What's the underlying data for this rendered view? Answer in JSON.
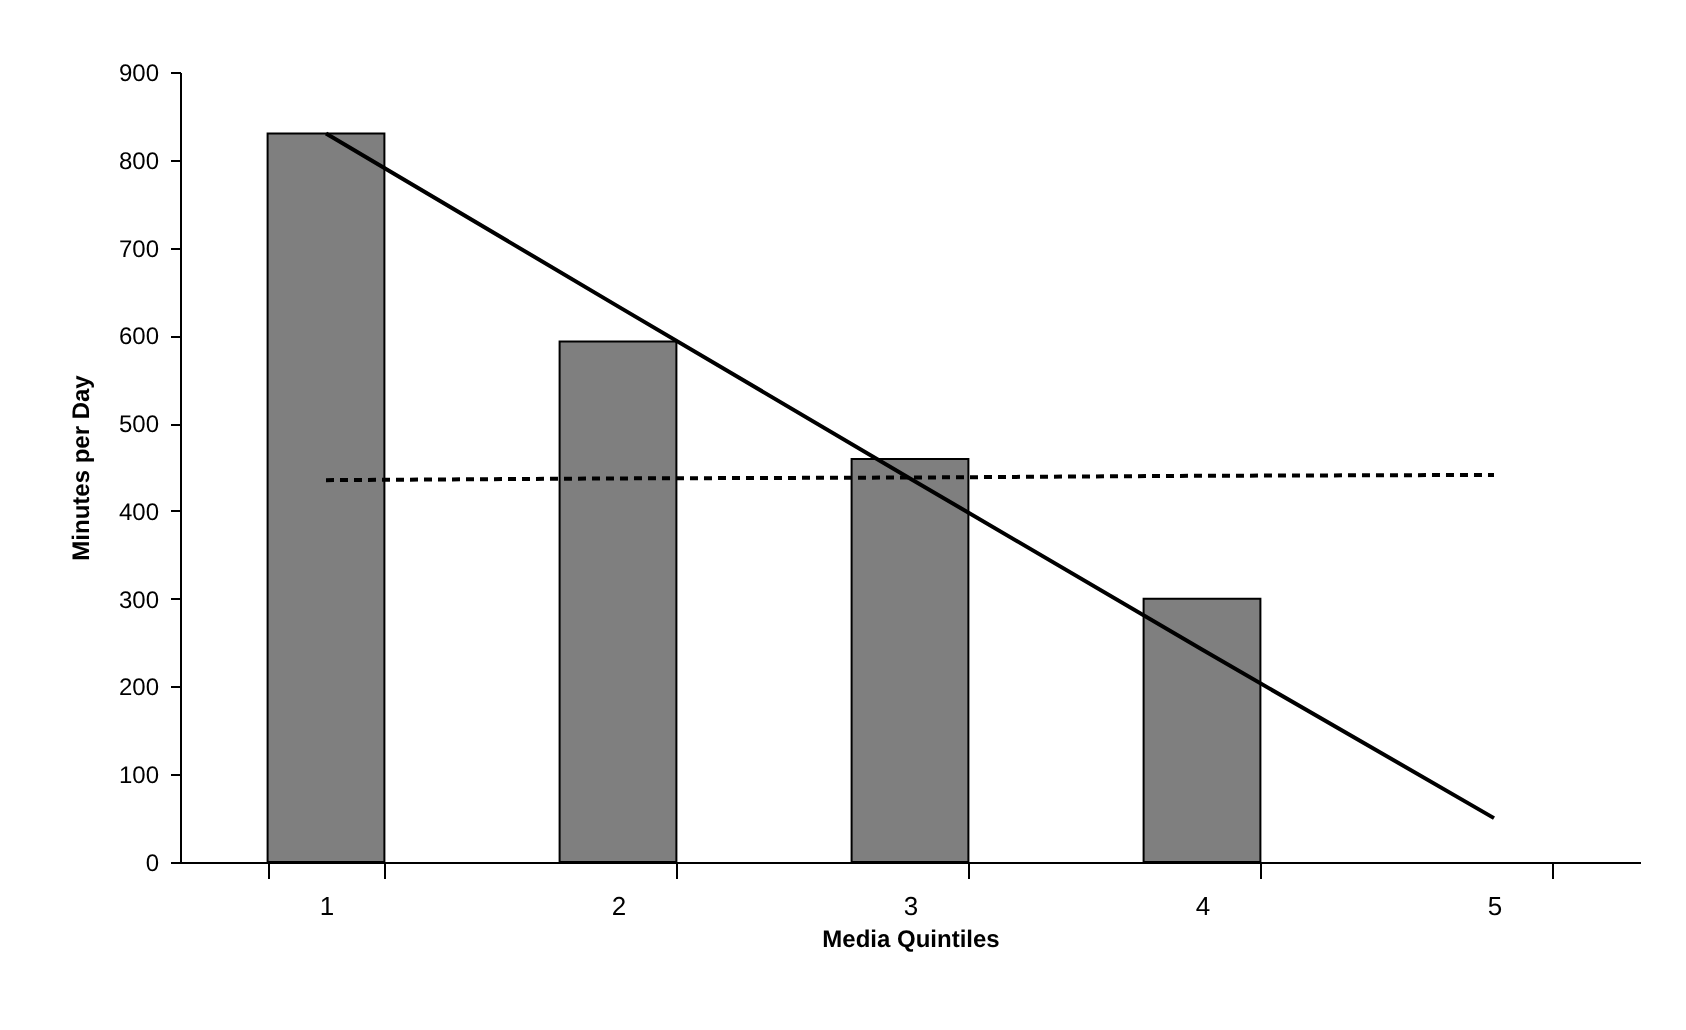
{
  "chart_data": {
    "type": "bar",
    "xlabel": "Media Quintiles",
    "ylabel": "Minutes per Day",
    "categories": [
      "1",
      "2",
      "3",
      "4",
      "5"
    ],
    "series": [
      {
        "color": "#7f7f7f",
        "values": [
          830,
          593,
          459,
          300,
          null
        ]
      },
      {
        "type": "line",
        "color": "#000000",
        "line_style": "solid",
        "values": [
          830,
          633,
          437,
          242,
          50
        ]
      },
      {
        "type": "line",
        "color": "#000000",
        "line_style": "dashed",
        "values": [
          435,
          437,
          438,
          440,
          441
        ]
      }
    ],
    "ylim": [
      0,
      900
    ],
    "yticks": [
      0,
      100,
      200,
      300,
      400,
      500,
      600,
      700,
      800,
      900
    ],
    "grid": false
  }
}
